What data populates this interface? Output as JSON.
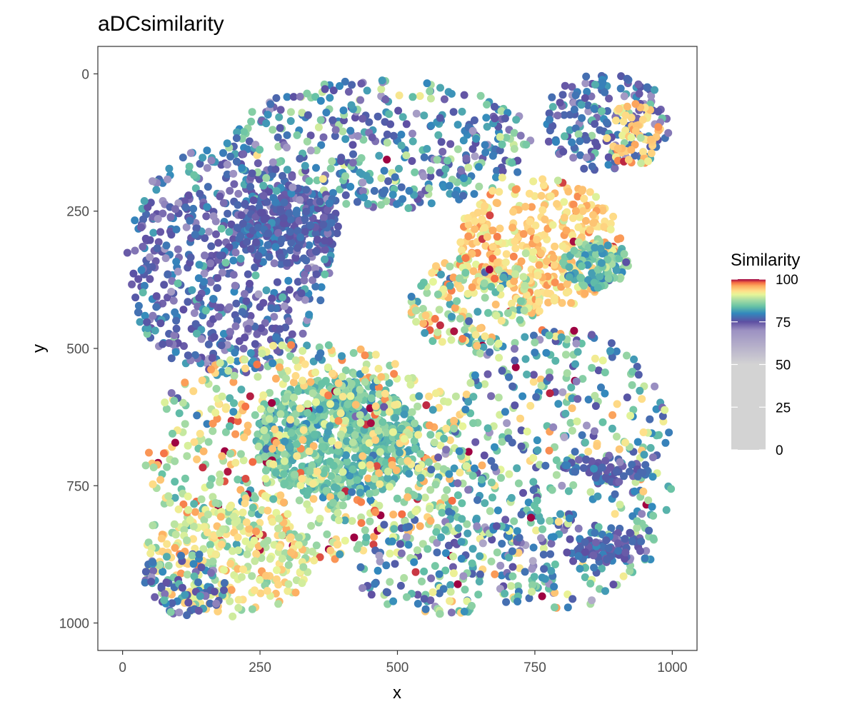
{
  "chart_data": {
    "type": "scatter",
    "title": "aDCsimilarity",
    "xlabel": "x",
    "ylabel": "y",
    "xlim": [
      -45,
      1045
    ],
    "ylim": [
      -50,
      1050
    ],
    "y_reversed": true,
    "x_ticks": [
      0,
      250,
      500,
      750,
      1000
    ],
    "y_ticks": [
      0,
      250,
      500,
      750,
      1000
    ],
    "x_tick_labels": [
      "0",
      "250",
      "500",
      "750",
      "1000"
    ],
    "y_tick_labels": [
      "0",
      "250",
      "500",
      "750",
      "1000"
    ],
    "grid": false,
    "legend": {
      "title": "Similarity",
      "position": "right",
      "range": [
        0,
        100
      ],
      "ticks": [
        0,
        25,
        50,
        75,
        100
      ],
      "tick_labels": [
        "0",
        "25",
        "50",
        "75",
        "100"
      ],
      "stops": [
        {
          "value": 0,
          "color": "#d3d3d3"
        },
        {
          "value": 50,
          "color": "#d3d3d3"
        },
        {
          "value": 70,
          "color": "#9c91c2"
        },
        {
          "value": 75,
          "color": "#5e4fa2"
        },
        {
          "value": 80,
          "color": "#3288bd"
        },
        {
          "value": 84,
          "color": "#66c2a5"
        },
        {
          "value": 88,
          "color": "#abdda4"
        },
        {
          "value": 91,
          "color": "#e6f598"
        },
        {
          "value": 93,
          "color": "#fee08b"
        },
        {
          "value": 96,
          "color": "#fdae61"
        },
        {
          "value": 98,
          "color": "#f46d43"
        },
        {
          "value": 100,
          "color": "#9e0142"
        }
      ]
    },
    "regions": [
      {
        "cx": 190,
        "cy": 340,
        "rx": 190,
        "ry": 210,
        "level": 76,
        "spread": 4,
        "count": 620
      },
      {
        "cx": 300,
        "cy": 275,
        "rx": 95,
        "ry": 70,
        "level": 76,
        "spread": 2,
        "count": 220
      },
      {
        "cx": 470,
        "cy": 130,
        "rx": 280,
        "ry": 120,
        "level": 80,
        "spread": 6,
        "count": 420
      },
      {
        "cx": 880,
        "cy": 90,
        "rx": 120,
        "ry": 90,
        "level": 77,
        "spread": 4,
        "count": 180
      },
      {
        "cx": 930,
        "cy": 110,
        "rx": 50,
        "ry": 60,
        "level": 94,
        "spread": 2,
        "count": 60
      },
      {
        "cx": 760,
        "cy": 310,
        "rx": 150,
        "ry": 120,
        "level": 94,
        "spread": 2,
        "count": 380
      },
      {
        "cx": 860,
        "cy": 345,
        "rx": 60,
        "ry": 45,
        "level": 84,
        "spread": 3,
        "count": 120
      },
      {
        "cx": 640,
        "cy": 420,
        "rx": 120,
        "ry": 90,
        "level": 90,
        "spread": 5,
        "count": 200
      },
      {
        "cx": 390,
        "cy": 665,
        "rx": 150,
        "ry": 110,
        "level": 84,
        "spread": 2,
        "count": 720
      },
      {
        "cx": 340,
        "cy": 690,
        "rx": 300,
        "ry": 200,
        "level": 90,
        "spread": 5,
        "count": 650
      },
      {
        "cx": 190,
        "cy": 880,
        "rx": 160,
        "ry": 110,
        "level": 91,
        "spread": 3,
        "count": 260
      },
      {
        "cx": 110,
        "cy": 930,
        "rx": 80,
        "ry": 60,
        "level": 77,
        "spread": 4,
        "count": 80
      },
      {
        "cx": 790,
        "cy": 720,
        "rx": 220,
        "ry": 260,
        "level": 83,
        "spread": 7,
        "count": 500
      },
      {
        "cx": 880,
        "cy": 860,
        "rx": 80,
        "ry": 30,
        "level": 76,
        "spread": 2,
        "count": 90
      },
      {
        "cx": 880,
        "cy": 720,
        "rx": 80,
        "ry": 25,
        "level": 76,
        "spread": 2,
        "count": 60
      },
      {
        "cx": 600,
        "cy": 900,
        "rx": 180,
        "ry": 90,
        "level": 82,
        "spread": 7,
        "count": 170
      }
    ]
  }
}
